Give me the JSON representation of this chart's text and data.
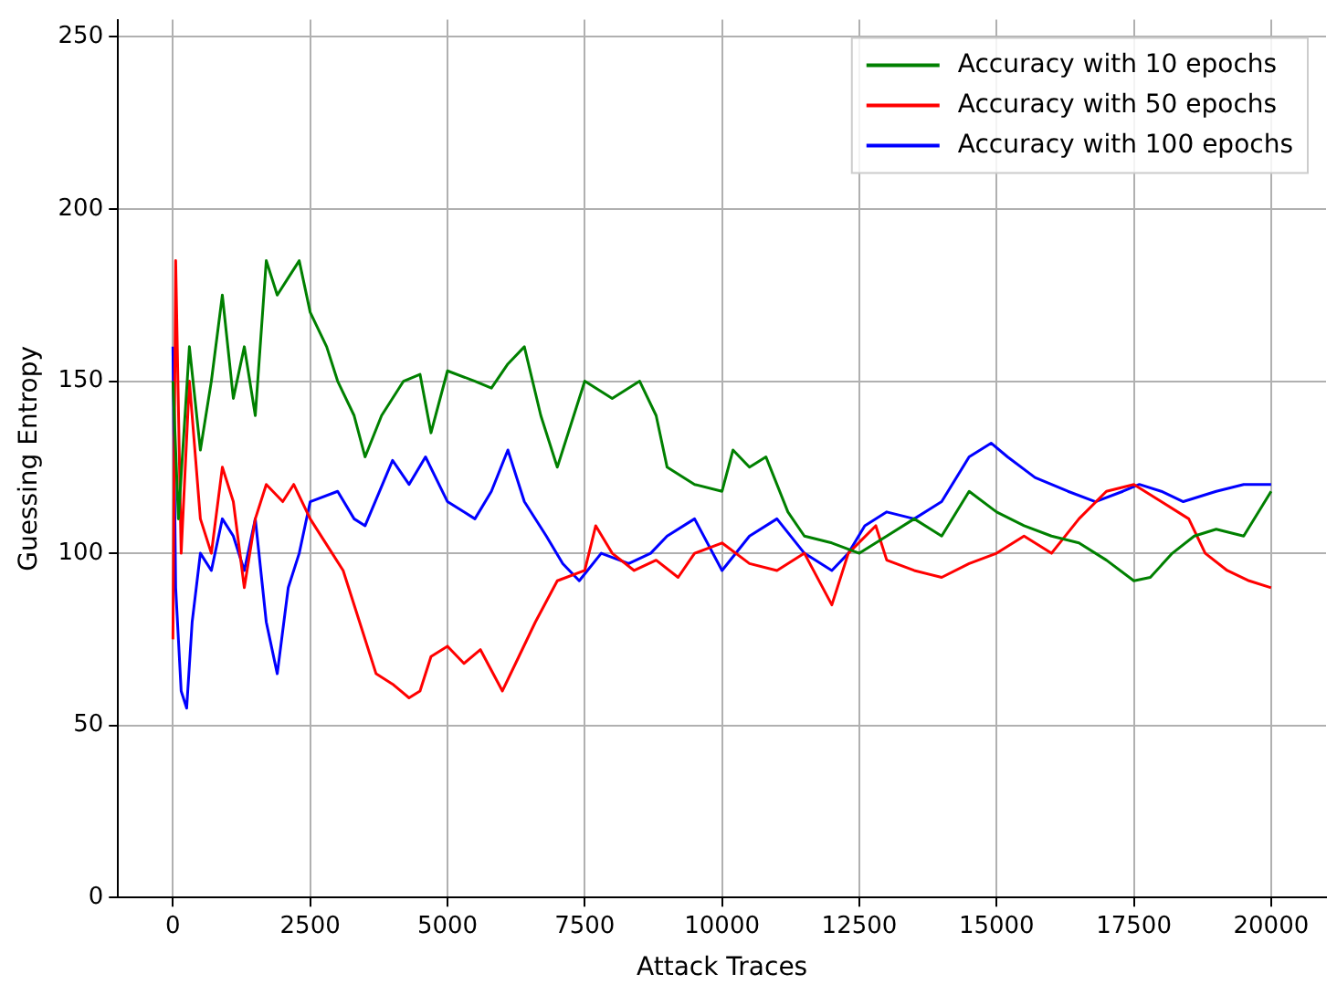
{
  "chart_data": {
    "type": "line",
    "xlabel": "Attack Traces",
    "ylabel": "Guessing Entropy",
    "xlim": [
      -1000,
      21000
    ],
    "ylim": [
      0,
      255
    ],
    "xticks": [
      0,
      2500,
      5000,
      7500,
      10000,
      12500,
      15000,
      17500,
      20000
    ],
    "yticks": [
      0,
      50,
      100,
      150,
      200,
      250
    ],
    "grid": true,
    "legend": "top right",
    "marker": "none",
    "line_style": "solid",
    "series": [
      {
        "name": "Accuracy with 10 epochs",
        "color": "#008000",
        "x": [
          0,
          100,
          300,
          500,
          700,
          900,
          1100,
          1300,
          1500,
          1700,
          1900,
          2100,
          2300,
          2500,
          2800,
          3000,
          3300,
          3500,
          3800,
          4200,
          4500,
          4700,
          5000,
          5500,
          5800,
          6100,
          6400,
          6700,
          7000,
          7300,
          7500,
          8000,
          8500,
          8800,
          9000,
          9500,
          10000,
          10200,
          10500,
          10800,
          11200,
          11500,
          12000,
          12500,
          13000,
          13500,
          14000,
          14500,
          15000,
          15500,
          16000,
          16500,
          17000,
          17500,
          17800,
          18200,
          18600,
          19000,
          19500,
          20000
        ],
        "values": [
          150,
          110,
          160,
          130,
          150,
          175,
          145,
          160,
          140,
          185,
          175,
          180,
          185,
          170,
          160,
          150,
          140,
          128,
          140,
          150,
          152,
          135,
          153,
          150,
          148,
          155,
          160,
          140,
          125,
          140,
          150,
          145,
          150,
          140,
          125,
          120,
          118,
          130,
          125,
          128,
          112,
          105,
          103,
          100,
          105,
          110,
          105,
          118,
          112,
          108,
          105,
          103,
          98,
          92,
          93,
          100,
          105,
          107,
          105,
          118
        ]
      },
      {
        "name": "Accuracy with 50 epochs",
        "color": "#ff0000",
        "x": [
          0,
          50,
          150,
          300,
          500,
          700,
          900,
          1100,
          1300,
          1500,
          1700,
          2000,
          2200,
          2500,
          2900,
          3100,
          3400,
          3700,
          4000,
          4300,
          4500,
          4700,
          5000,
          5300,
          5600,
          6000,
          6300,
          6600,
          7000,
          7500,
          7700,
          8000,
          8400,
          8800,
          9200,
          9500,
          10000,
          10500,
          11000,
          11500,
          12000,
          12300,
          12800,
          13000,
          13500,
          14000,
          14500,
          15000,
          15500,
          16000,
          16500,
          17000,
          17500,
          18000,
          18500,
          18800,
          19200,
          19600,
          20000
        ],
        "values": [
          75,
          185,
          100,
          150,
          110,
          100,
          125,
          115,
          90,
          110,
          120,
          115,
          120,
          110,
          100,
          95,
          80,
          65,
          62,
          58,
          60,
          70,
          73,
          68,
          72,
          60,
          70,
          80,
          92,
          95,
          108,
          100,
          95,
          98,
          93,
          100,
          103,
          97,
          95,
          100,
          85,
          100,
          108,
          98,
          95,
          93,
          97,
          100,
          105,
          100,
          110,
          118,
          120,
          115,
          110,
          100,
          95,
          92,
          90
        ]
      },
      {
        "name": "Accuracy with 100 epochs",
        "color": "#0000ff",
        "x": [
          0,
          50,
          150,
          250,
          350,
          500,
          700,
          900,
          1100,
          1300,
          1500,
          1700,
          1900,
          2100,
          2300,
          2500,
          3000,
          3300,
          3500,
          4000,
          4300,
          4600,
          5000,
          5500,
          5800,
          6100,
          6400,
          6800,
          7100,
          7400,
          7800,
          8300,
          8700,
          9000,
          9500,
          10000,
          10500,
          11000,
          11500,
          12000,
          12300,
          12600,
          13000,
          13500,
          14000,
          14500,
          14900,
          15200,
          15700,
          16300,
          16800,
          17300,
          17600,
          18000,
          18400,
          19000,
          19500,
          20000
        ],
        "values": [
          160,
          90,
          60,
          55,
          80,
          100,
          95,
          110,
          105,
          95,
          110,
          80,
          65,
          90,
          100,
          115,
          118,
          110,
          108,
          127,
          120,
          128,
          115,
          110,
          118,
          130,
          115,
          105,
          97,
          92,
          100,
          97,
          100,
          105,
          110,
          95,
          105,
          110,
          100,
          95,
          100,
          108,
          112,
          110,
          115,
          128,
          132,
          128,
          122,
          118,
          115,
          118,
          120,
          118,
          115,
          118,
          120,
          120
        ]
      }
    ]
  }
}
